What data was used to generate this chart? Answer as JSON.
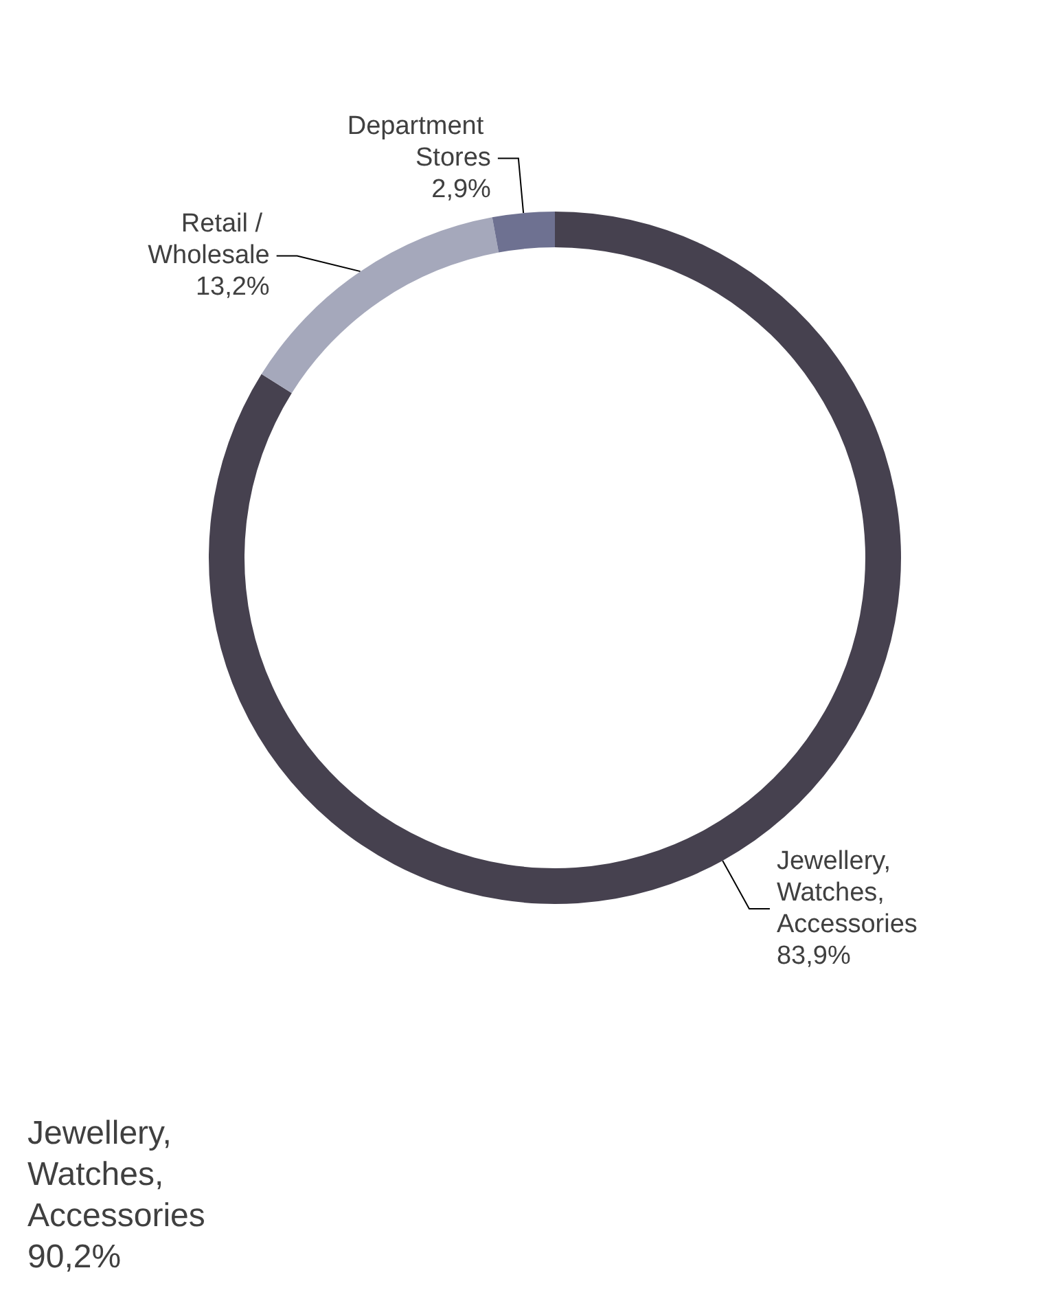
{
  "chart_data": {
    "type": "donut",
    "categories": [
      "Jewellery, Watches, Accessories",
      "Retail / Wholesale",
      "Department Stores"
    ],
    "values": [
      83.9,
      13.2,
      2.9
    ],
    "value_labels": [
      "83,9%",
      "13,2%",
      "2,9%"
    ],
    "colors": [
      "#46414f",
      "#a5a8bb",
      "#6e7191"
    ],
    "annotations": [
      "Jewellery, Watches, Accessories 90,2%"
    ]
  }
}
